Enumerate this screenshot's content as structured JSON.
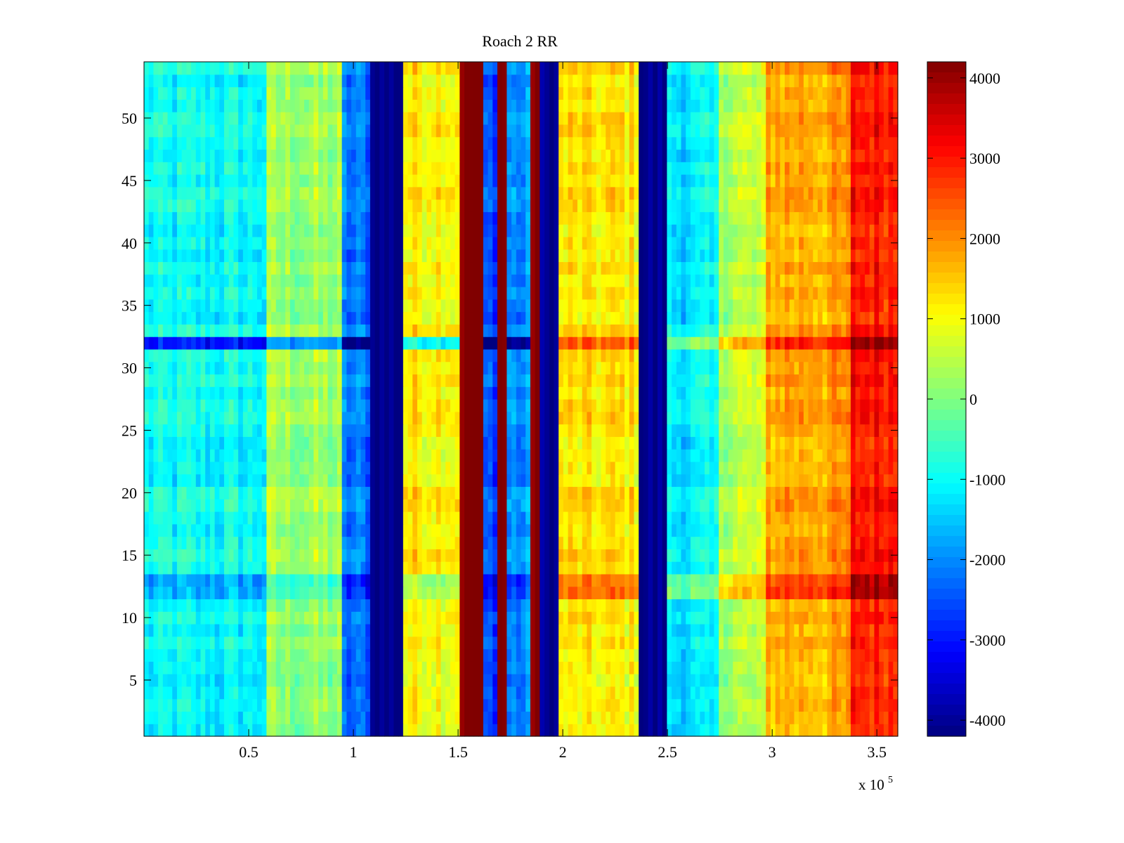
{
  "chart_data": {
    "type": "heatmap",
    "title": "Roach 2 RR",
    "xlabel": "",
    "ylabel": "",
    "x_exponent_label": "x 10",
    "x_exponent_power": "5",
    "xlim": [
      0,
      3.6
    ],
    "ylim": [
      0.5,
      54.5
    ],
    "x_ticks": [
      {
        "value": 0.5,
        "label": "0.5"
      },
      {
        "value": 1,
        "label": "1"
      },
      {
        "value": 1.5,
        "label": "1.5"
      },
      {
        "value": 2,
        "label": "2"
      },
      {
        "value": 2.5,
        "label": "2.5"
      },
      {
        "value": 3,
        "label": "3"
      },
      {
        "value": 3.5,
        "label": "3.5"
      }
    ],
    "y_ticks": [
      {
        "value": 5,
        "label": "5"
      },
      {
        "value": 10,
        "label": "10"
      },
      {
        "value": 15,
        "label": "15"
      },
      {
        "value": 20,
        "label": "20"
      },
      {
        "value": 25,
        "label": "25"
      },
      {
        "value": 30,
        "label": "30"
      },
      {
        "value": 35,
        "label": "35"
      },
      {
        "value": 40,
        "label": "40"
      },
      {
        "value": 45,
        "label": "45"
      },
      {
        "value": 50,
        "label": "50"
      }
    ],
    "colorbar": {
      "colormap": "jet",
      "clim": [
        -4200,
        4200
      ],
      "ticks": [
        {
          "value": 4000,
          "label": "4000"
        },
        {
          "value": 3000,
          "label": "3000"
        },
        {
          "value": 2000,
          "label": "2000"
        },
        {
          "value": 1000,
          "label": "1000"
        },
        {
          "value": 0,
          "label": "0"
        },
        {
          "value": -1000,
          "label": "-1000"
        },
        {
          "value": -2000,
          "label": "-2000"
        },
        {
          "value": -3000,
          "label": "-3000"
        },
        {
          "value": -4000,
          "label": "-4000"
        }
      ]
    },
    "column_profile": [
      {
        "x_start": 0.0,
        "x_end": 0.58,
        "value": -1000
      },
      {
        "x_start": 0.58,
        "x_end": 0.95,
        "value": 200
      },
      {
        "x_start": 0.95,
        "x_end": 1.08,
        "value": -2200
      },
      {
        "x_start": 1.08,
        "x_end": 1.23,
        "value": -4100
      },
      {
        "x_start": 1.23,
        "x_end": 1.5,
        "value": 1200
      },
      {
        "x_start": 1.5,
        "x_end": 1.62,
        "value": 4200
      },
      {
        "x_start": 1.62,
        "x_end": 1.68,
        "value": -2500
      },
      {
        "x_start": 1.68,
        "x_end": 1.74,
        "value": 4200
      },
      {
        "x_start": 1.74,
        "x_end": 1.84,
        "value": -2000
      },
      {
        "x_start": 1.84,
        "x_end": 1.88,
        "value": 4200
      },
      {
        "x_start": 1.88,
        "x_end": 1.99,
        "value": -4100
      },
      {
        "x_start": 1.99,
        "x_end": 2.37,
        "value": 1200
      },
      {
        "x_start": 2.37,
        "x_end": 2.5,
        "value": -4100
      },
      {
        "x_start": 2.5,
        "x_end": 2.75,
        "value": -1200
      },
      {
        "x_start": 2.75,
        "x_end": 2.98,
        "value": 500
      },
      {
        "x_start": 2.98,
        "x_end": 3.38,
        "value": 1800
      },
      {
        "x_start": 3.38,
        "x_end": 3.6,
        "value": 3000
      }
    ],
    "row_notes": [
      {
        "y": 32,
        "description": "bright band: blue on left half, red on right half"
      },
      {
        "y": 13,
        "description": "darker band"
      }
    ]
  }
}
